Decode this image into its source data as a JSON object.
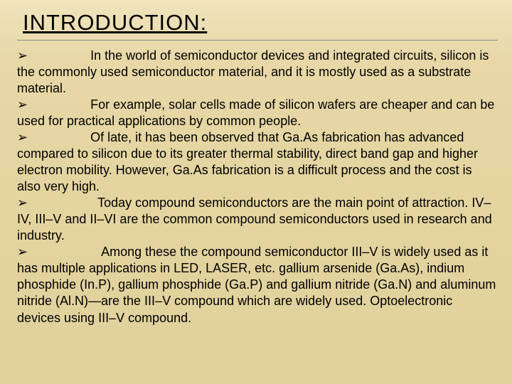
{
  "title": "INTRODUCTION:",
  "bullet_glyph": "➢",
  "items": [
    "In the world of semiconductor devices and integrated circuits, silicon is the commonly used semiconductor material, and it is mostly used as a substrate material.",
    "For example, solar cells made of silicon wafers are cheaper and can be used for practical applications by common people.",
    "Of late, it has been observed that Ga.As fabrication has advanced compared to silicon due to its greater thermal stability, direct band gap and higher electron mobility. However, Ga.As fabrication is a difficult process and the cost is also very high.",
    "Today compound semiconductors are the main point of attraction. IV–IV, III–V and II–VI are the common compound semiconductors used in research and industry.",
    "Among these the compound semiconductor III–V is widely used as it has multiple applications in LED, LASER, etc. gallium arsenide (Ga.As), indium phosphide (In.P), gallium phosphide (Ga.P) and gallium nitride (Ga.N) and aluminum nitride (Al.N)—are the III–V compound which are widely used. Optoelectronic devices using III–V compound."
  ]
}
